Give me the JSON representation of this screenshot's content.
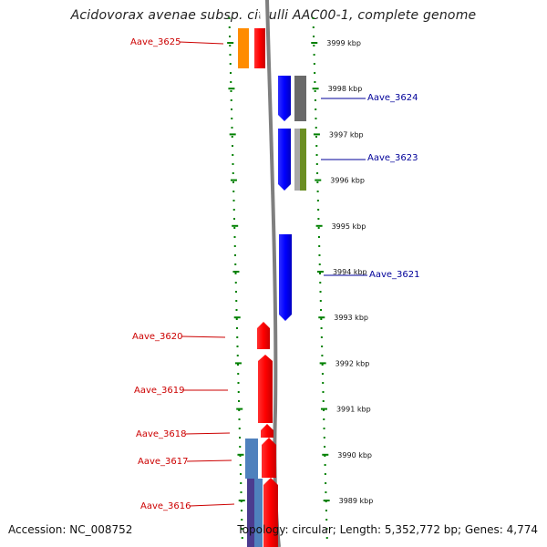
{
  "title": "Acidovorax avenae subsp. citrulli AAC00-1, complete genome",
  "footer": {
    "accession": "Accession: NC_008752",
    "summary": "Topology: circular; Length: 5,352,772 bp; Genes: 4,774"
  },
  "kbp_labels": [
    {
      "label": "3999 kbp",
      "kb": 3999
    },
    {
      "label": "3998 kbp",
      "kb": 3998
    },
    {
      "label": "3997 kbp",
      "kb": 3997
    },
    {
      "label": "3996 kbp",
      "kb": 3996
    },
    {
      "label": "3995 kbp",
      "kb": 3995
    },
    {
      "label": "3994 kbp",
      "kb": 3994
    },
    {
      "label": "3993 kbp",
      "kb": 3993
    },
    {
      "label": "3992 kbp",
      "kb": 3992
    },
    {
      "label": "3991 kbp",
      "kb": 3991
    },
    {
      "label": "3990 kbp",
      "kb": 3990
    },
    {
      "label": "3989 kbp",
      "kb": 3989
    }
  ],
  "gene_labels": [
    {
      "name": "Aave_3625",
      "strand": "reverse"
    },
    {
      "name": "Aave_3624",
      "strand": "forward"
    },
    {
      "name": "Aave_3623",
      "strand": "forward"
    },
    {
      "name": "Aave_3621",
      "strand": "forward"
    },
    {
      "name": "Aave_3620",
      "strand": "reverse"
    },
    {
      "name": "Aave_3619",
      "strand": "reverse"
    },
    {
      "name": "Aave_3618",
      "strand": "reverse"
    },
    {
      "name": "Aave_3617",
      "strand": "reverse"
    },
    {
      "name": "Aave_3616",
      "strand": "reverse"
    }
  ],
  "colors": {
    "reverse_gene": "#ff0000",
    "forward_gene": "#0000ff",
    "label_reverse": "#cc0000",
    "label_forward": "#000099",
    "tick": "#008000",
    "backbone": "#7f7f7f",
    "orange_feature": "#ff8c00",
    "gray_feature": "#707070",
    "olive_feature": "#6b8e23",
    "steel_feature": "#4f81bd",
    "purple_feature": "#4b3b8f"
  }
}
